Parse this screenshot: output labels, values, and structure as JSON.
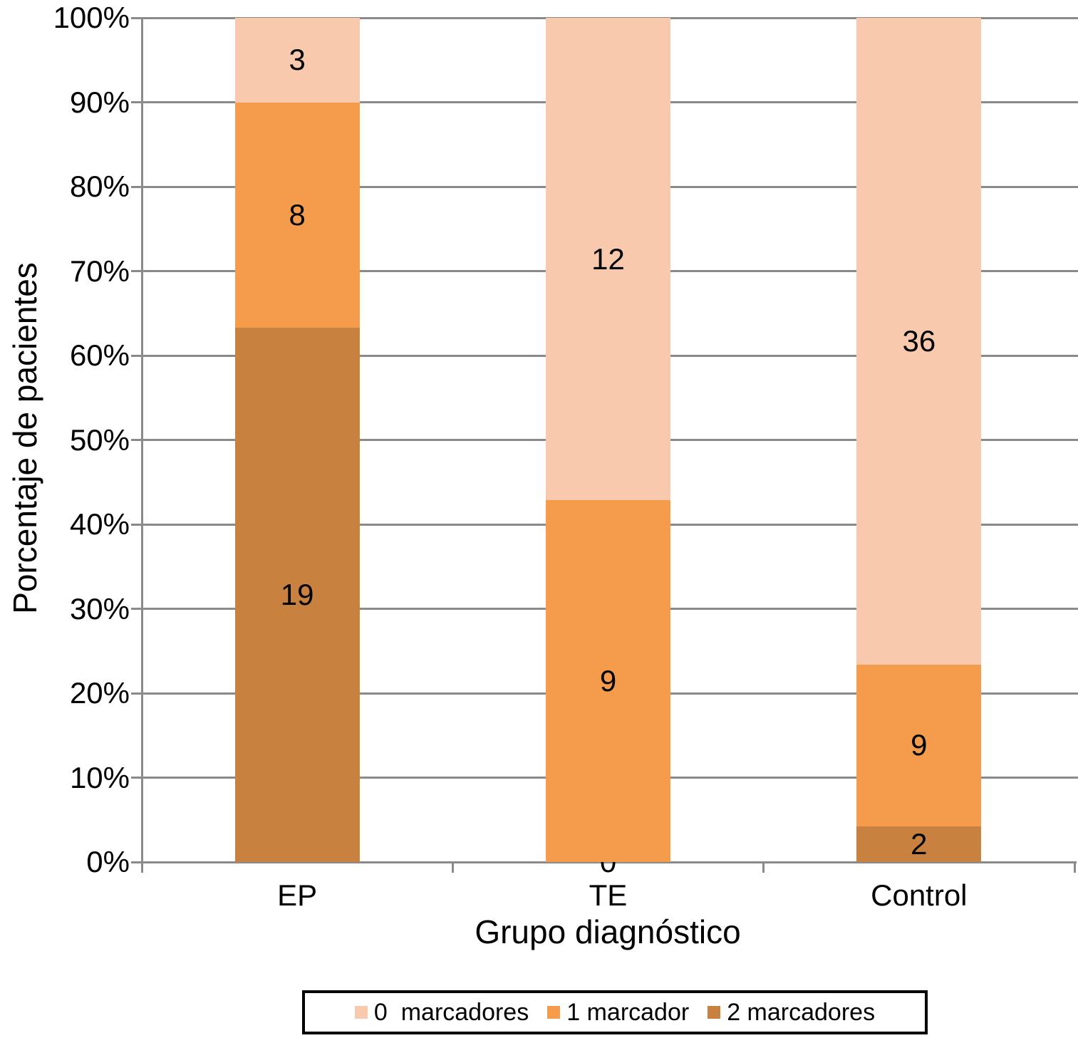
{
  "chart_data": {
    "type": "bar",
    "variant": "stacked-100-percent-column",
    "title": "",
    "xlabel": "Grupo diagnóstico",
    "ylabel": "Porcentaje de pacientes",
    "categories": [
      "EP",
      "TE",
      "Control"
    ],
    "series": [
      {
        "name": "0  marcadores",
        "color": "#F8C9AC",
        "values": [
          3,
          12,
          36
        ]
      },
      {
        "name": "1 marcador",
        "color": "#F49B4C",
        "values": [
          8,
          9,
          9
        ]
      },
      {
        "name": "2 marcadores",
        "color": "#C8813E",
        "values": [
          19,
          0,
          2
        ]
      }
    ],
    "segment_percentages": {
      "EP": {
        "2 marcadores": 63.3,
        "1 marcador": 26.7,
        "0 marcadores": 10.0
      },
      "TE": {
        "2 marcadores": 0.0,
        "1 marcador": 42.9,
        "0 marcadores": 57.1
      },
      "Control": {
        "2 marcadores": 4.3,
        "1 marcador": 19.1,
        "0 marcadores": 76.6
      }
    },
    "y_ticks": [
      "0%",
      "10%",
      "20%",
      "30%",
      "40%",
      "50%",
      "60%",
      "70%",
      "80%",
      "90%",
      "100%"
    ],
    "ylim": [
      0,
      100
    ],
    "grid": true,
    "legend_position": "bottom"
  },
  "colors": {
    "grid": "#8a8a8a",
    "axis": "#8a8a8a",
    "text": "#000000",
    "background": "#ffffff",
    "series_0_marcadores": "#F8C9AC",
    "series_1_marcador": "#F49B4C",
    "series_2_marcadores": "#C8813E"
  }
}
